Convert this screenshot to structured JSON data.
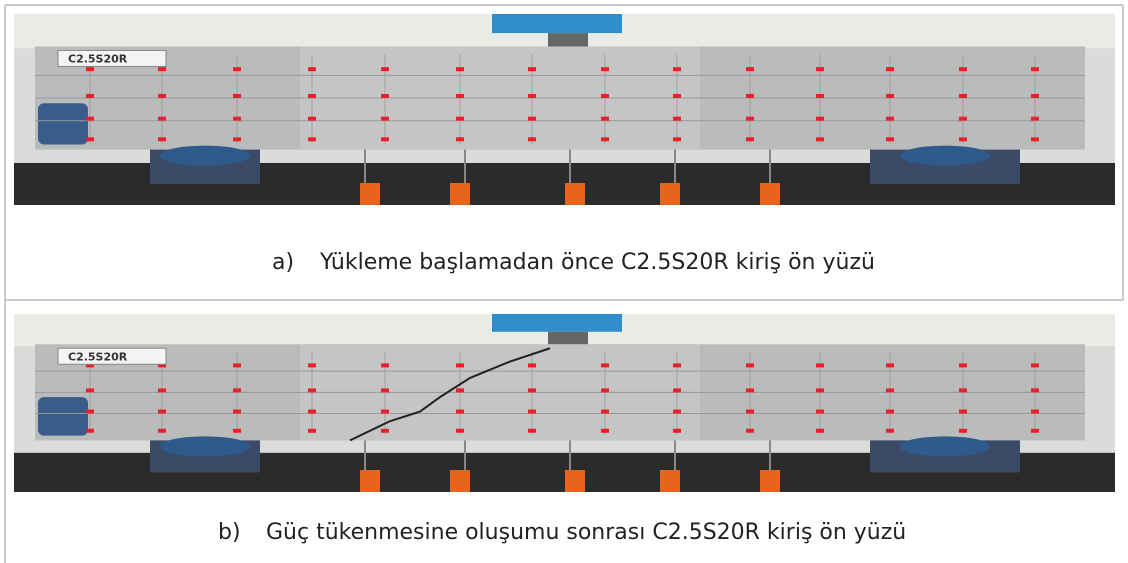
{
  "figures": [
    {
      "specimen_label": "C2.5S20R",
      "marker": "a)",
      "caption": "Yükleme başlamadan önce C2.5S20R kiriş ön yüzü"
    },
    {
      "specimen_label": "C2.5S20R",
      "marker": "b)",
      "caption": "Güç tükenmesine oluşumu sonrası C2.5S20R kiriş ön yüzü"
    }
  ]
}
